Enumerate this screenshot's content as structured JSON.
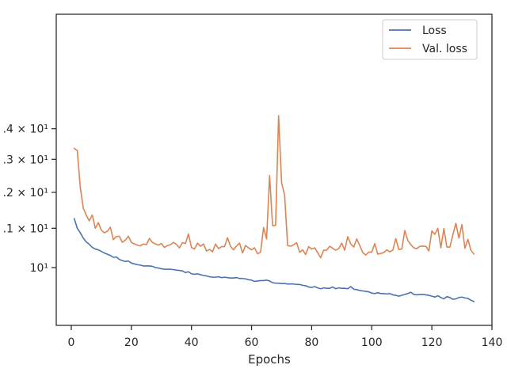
{
  "chart_data": {
    "type": "line",
    "title": "",
    "xlabel": "Epochs",
    "ylabel": "",
    "yscale": "log",
    "xlim": [
      -5,
      140
    ],
    "xticks": [
      0,
      20,
      40,
      60,
      80,
      100,
      120,
      140
    ],
    "xtick_labels": [
      "0",
      "20",
      "40",
      "60",
      "80",
      "100",
      "120",
      "140"
    ],
    "yticks": [
      10,
      11,
      12,
      13,
      14
    ],
    "ytick_labels": [
      "10¹",
      ".1 × 10¹",
      ".2 × 10¹",
      ".3 × 10¹",
      ".4 × 10¹"
    ],
    "legend_position": "top-right",
    "grid": false,
    "series": [
      {
        "name": "Loss",
        "color": "#4c72b0",
        "x": [
          1,
          2,
          3,
          4,
          5,
          6,
          7,
          8,
          9,
          10,
          11,
          12,
          13,
          14,
          15,
          16,
          17,
          18,
          19,
          20,
          21,
          22,
          23,
          24,
          25,
          26,
          27,
          28,
          29,
          30,
          31,
          32,
          33,
          34,
          35,
          36,
          37,
          38,
          39,
          40,
          41,
          42,
          43,
          44,
          45,
          46,
          47,
          48,
          49,
          50,
          51,
          52,
          53,
          54,
          55,
          56,
          57,
          58,
          59,
          60,
          61,
          62,
          63,
          64,
          65,
          66,
          67,
          68,
          69,
          70,
          71,
          72,
          73,
          74,
          75,
          76,
          77,
          78,
          79,
          80,
          81,
          82,
          83,
          84,
          85,
          86,
          87,
          88,
          89,
          90,
          91,
          92,
          93,
          94,
          95,
          96,
          97,
          98,
          99,
          100,
          101,
          102,
          103,
          104,
          105,
          106,
          107,
          108,
          109,
          110,
          111,
          112,
          113,
          114,
          115,
          116,
          117,
          118,
          119,
          120,
          121,
          122,
          123,
          124,
          125,
          126,
          127,
          128,
          129,
          130,
          131,
          132,
          133,
          134
        ],
        "values": [
          11.26,
          11.0,
          10.88,
          10.74,
          10.64,
          10.58,
          10.5,
          10.46,
          10.44,
          10.4,
          10.36,
          10.33,
          10.3,
          10.25,
          10.26,
          10.2,
          10.17,
          10.15,
          10.16,
          10.11,
          10.09,
          10.07,
          10.06,
          10.04,
          10.04,
          10.04,
          10.03,
          10.0,
          9.99,
          9.97,
          9.96,
          9.96,
          9.96,
          9.95,
          9.94,
          9.93,
          9.92,
          9.88,
          9.9,
          9.85,
          9.84,
          9.85,
          9.83,
          9.81,
          9.8,
          9.78,
          9.77,
          9.77,
          9.78,
          9.76,
          9.77,
          9.76,
          9.75,
          9.75,
          9.76,
          9.74,
          9.74,
          9.73,
          9.71,
          9.7,
          9.67,
          9.68,
          9.69,
          9.69,
          9.7,
          9.68,
          9.64,
          9.63,
          9.63,
          9.62,
          9.62,
          9.61,
          9.61,
          9.61,
          9.6,
          9.6,
          9.58,
          9.57,
          9.54,
          9.53,
          9.55,
          9.52,
          9.5,
          9.52,
          9.51,
          9.51,
          9.54,
          9.5,
          9.52,
          9.51,
          9.51,
          9.5,
          9.55,
          9.49,
          9.48,
          9.46,
          9.45,
          9.44,
          9.43,
          9.4,
          9.39,
          9.41,
          9.39,
          9.39,
          9.38,
          9.39,
          9.36,
          9.35,
          9.33,
          9.35,
          9.37,
          9.39,
          9.42,
          9.37,
          9.36,
          9.37,
          9.37,
          9.36,
          9.35,
          9.33,
          9.31,
          9.34,
          9.3,
          9.27,
          9.32,
          9.3,
          9.26,
          9.27,
          9.3,
          9.31,
          9.29,
          9.28,
          9.24,
          9.21
        ]
      },
      {
        "name": "Val. loss",
        "color": "#dd8452",
        "x": [
          1,
          2,
          3,
          4,
          5,
          6,
          7,
          8,
          9,
          10,
          11,
          12,
          13,
          14,
          15,
          16,
          17,
          18,
          19,
          20,
          21,
          22,
          23,
          24,
          25,
          26,
          27,
          28,
          29,
          30,
          31,
          32,
          33,
          34,
          35,
          36,
          37,
          38,
          39,
          40,
          41,
          42,
          43,
          44,
          45,
          46,
          47,
          48,
          49,
          50,
          51,
          52,
          53,
          54,
          55,
          56,
          57,
          58,
          59,
          60,
          61,
          62,
          63,
          64,
          65,
          66,
          67,
          68,
          69,
          70,
          71,
          72,
          73,
          74,
          75,
          76,
          77,
          78,
          79,
          80,
          81,
          82,
          83,
          84,
          85,
          86,
          87,
          88,
          89,
          90,
          91,
          92,
          93,
          94,
          95,
          96,
          97,
          98,
          99,
          100,
          101,
          102,
          103,
          104,
          105,
          106,
          107,
          108,
          109,
          110,
          111,
          112,
          113,
          114,
          115,
          116,
          117,
          118,
          119,
          120,
          121,
          122,
          123,
          124,
          125,
          126,
          127,
          128,
          129,
          130,
          131,
          132,
          133,
          134
        ],
        "values": [
          13.35,
          13.28,
          12.15,
          11.55,
          11.35,
          11.2,
          11.36,
          11.0,
          11.15,
          10.95,
          10.88,
          10.92,
          11.03,
          10.7,
          10.78,
          10.79,
          10.63,
          10.69,
          10.79,
          10.63,
          10.59,
          10.56,
          10.54,
          10.59,
          10.57,
          10.73,
          10.63,
          10.59,
          10.56,
          10.6,
          10.5,
          10.55,
          10.57,
          10.63,
          10.58,
          10.49,
          10.62,
          10.6,
          10.85,
          10.5,
          10.46,
          10.61,
          10.53,
          10.59,
          10.41,
          10.45,
          10.39,
          10.59,
          10.47,
          10.52,
          10.52,
          10.75,
          10.53,
          10.44,
          10.54,
          10.61,
          10.36,
          10.55,
          10.49,
          10.44,
          10.49,
          10.34,
          10.38,
          11.02,
          10.72,
          12.5,
          11.07,
          11.08,
          14.45,
          12.28,
          11.92,
          10.55,
          10.53,
          10.57,
          10.62,
          10.38,
          10.44,
          10.32,
          10.52,
          10.46,
          10.49,
          10.37,
          10.24,
          10.43,
          10.43,
          10.53,
          10.48,
          10.43,
          10.47,
          10.61,
          10.43,
          10.78,
          10.59,
          10.51,
          10.72,
          10.55,
          10.37,
          10.31,
          10.38,
          10.38,
          10.6,
          10.33,
          10.35,
          10.37,
          10.44,
          10.39,
          10.43,
          10.73,
          10.45,
          10.46,
          10.94,
          10.68,
          10.57,
          10.49,
          10.47,
          10.53,
          10.53,
          10.53,
          10.41,
          10.93,
          10.84,
          11.0,
          10.49,
          10.99,
          10.51,
          10.51,
          10.83,
          11.13,
          10.74,
          11.1,
          10.48,
          10.71,
          10.43,
          10.33
        ]
      }
    ]
  }
}
